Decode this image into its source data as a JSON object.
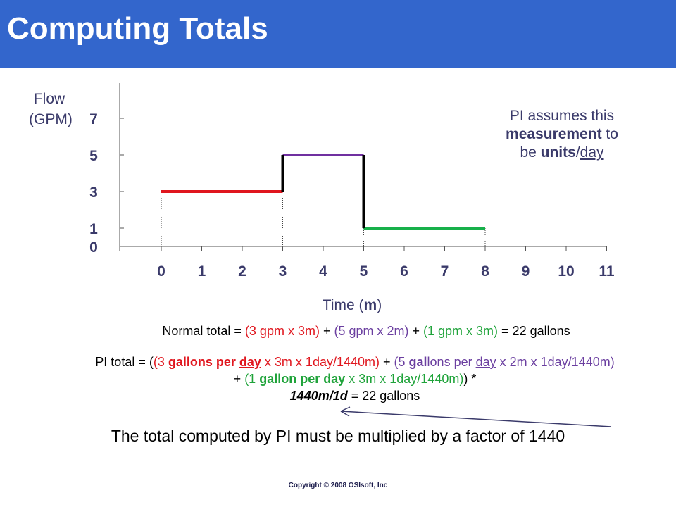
{
  "title": "Computing Totals",
  "chart_data": {
    "type": "line",
    "step": true,
    "ylabel_line1": "Flow",
    "ylabel_line2": "(GPM)",
    "xlabel_pre": "Time (",
    "xlabel_bold": "m",
    "xlabel_post": ")",
    "yticks": [
      0,
      1,
      3,
      5,
      7
    ],
    "xticks": [
      0,
      1,
      2,
      3,
      4,
      5,
      6,
      7,
      8,
      9,
      10,
      11
    ],
    "xlim": [
      -1,
      11.6
    ],
    "ylim": [
      0,
      8
    ],
    "segments": [
      {
        "x_start": 0,
        "x_end": 3,
        "y": 3,
        "color": "#e0161e"
      },
      {
        "x_start": 3,
        "x_end": 5,
        "y": 5,
        "color": "#7030a0"
      },
      {
        "x_start": 5,
        "x_end": 8,
        "y": 1,
        "color": "#17b04a"
      }
    ],
    "step_color": "#000000"
  },
  "note": {
    "line1": "PI assumes this",
    "measurement": "measurement",
    "to": " to",
    "be": "be  ",
    "units": "units",
    "slash": "/",
    "day": "day"
  },
  "normal_total": {
    "prefix": "Normal total = ",
    "t1": "(3 gpm x 3m)",
    "plus1": " + ",
    "t2": "(5 gpm x 2m)",
    "plus2": " + ",
    "t3": "(1 gpm x 3m)",
    "suffix": " = 22 gallons"
  },
  "pi_total": {
    "prefix": "PI total = (",
    "a1": "(3 ",
    "a2": "gallons per ",
    "a3": "day",
    "a4": " x 3m x 1day/1440m)",
    "plus1": " + ",
    "b1": "(5 ",
    "b2": "gal",
    "b3": "lons per ",
    "b4": "day",
    "b5": " x 2m x 1day/1440m)",
    "plus2": " + ",
    "c1": "(1 ",
    "c2": "gallon per ",
    "c3": "day",
    "c4": " x 3m x 1day/1440m)",
    "close": ") *",
    "factor": "1440m/1d",
    "suffix": " = 22 gallons"
  },
  "bottom_text": "The total computed by PI must be multiplied by a factor of 1440",
  "copyright": "Copyright © 2008 OSIsoft, Inc"
}
